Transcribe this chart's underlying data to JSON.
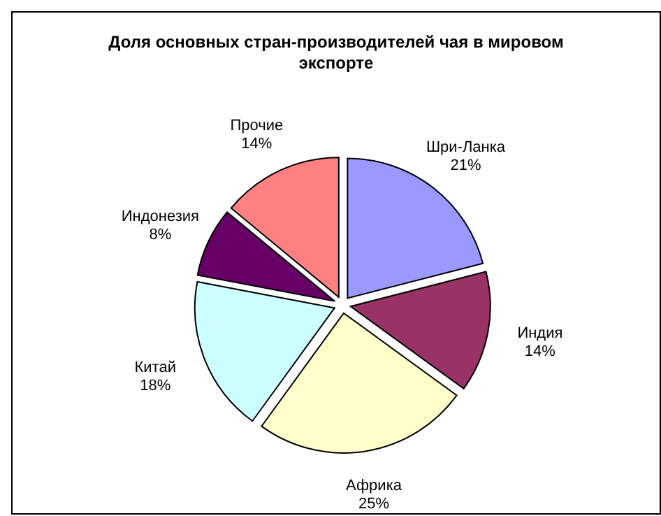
{
  "chart_data": {
    "type": "pie",
    "title": "Доля основных стран-производителей чая в мировом экспорте",
    "categories": [
      "Шри-Ланка",
      "Индия",
      "Африка",
      "Китай",
      "Индонезия",
      "Прочие"
    ],
    "values": [
      21,
      14,
      25,
      18,
      8,
      14
    ],
    "colors": [
      "#9999ff",
      "#993366",
      "#ffffcc",
      "#ccffff",
      "#660066",
      "#ff8080"
    ],
    "value_labels": [
      "21%",
      "14%",
      "25%",
      "18%",
      "8%",
      "14%"
    ]
  }
}
